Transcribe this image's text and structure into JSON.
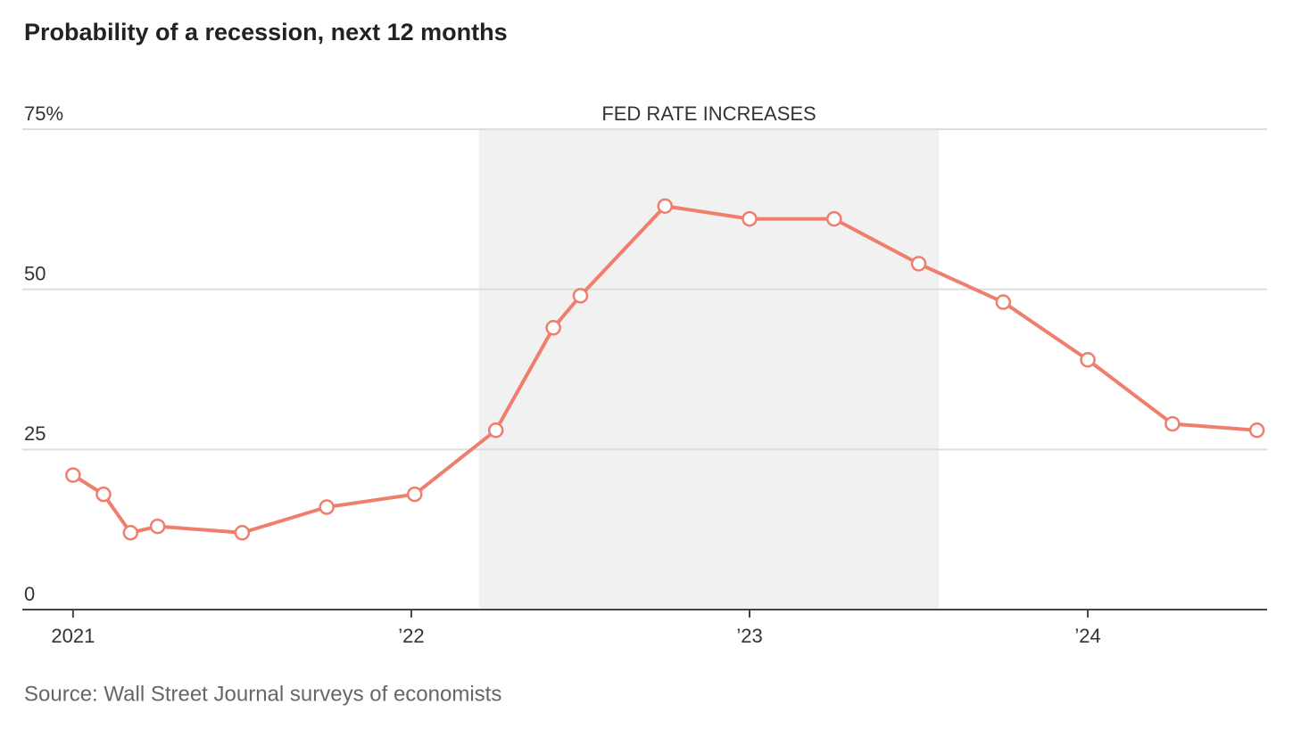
{
  "chart_data": {
    "type": "line",
    "title": "Probability of a recession, next 12 months",
    "source": "Source: Wall Street Journal surveys of economists",
    "shaded": {
      "label": "FED RATE INCREASES",
      "x": [
        2022.2,
        2023.56
      ]
    },
    "x": [
      2021.0,
      2021.09,
      2021.17,
      2021.25,
      2021.5,
      2021.75,
      2022.01,
      2022.25,
      2022.42,
      2022.5,
      2022.75,
      2023.0,
      2023.25,
      2023.5,
      2023.75,
      2024.0,
      2024.25,
      2024.5
    ],
    "series": [
      {
        "name": "Probability of a recession",
        "color": "#ef7e6d",
        "values": [
          21,
          18,
          12,
          13,
          12,
          16,
          18,
          28,
          44,
          49,
          63,
          61,
          61,
          54,
          48,
          39,
          29,
          28
        ]
      }
    ],
    "xlim": [
      2020.85,
      2024.53
    ],
    "xticks": [
      {
        "value": 2021,
        "label": "2021"
      },
      {
        "value": 2022,
        "label": "’22"
      },
      {
        "value": 2023,
        "label": "’23"
      },
      {
        "value": 2024,
        "label": "’24"
      }
    ],
    "ylim": [
      0,
      75
    ],
    "yticks": [
      0,
      25,
      50,
      {
        "value": 75,
        "label": "75%"
      }
    ],
    "grid": true
  }
}
